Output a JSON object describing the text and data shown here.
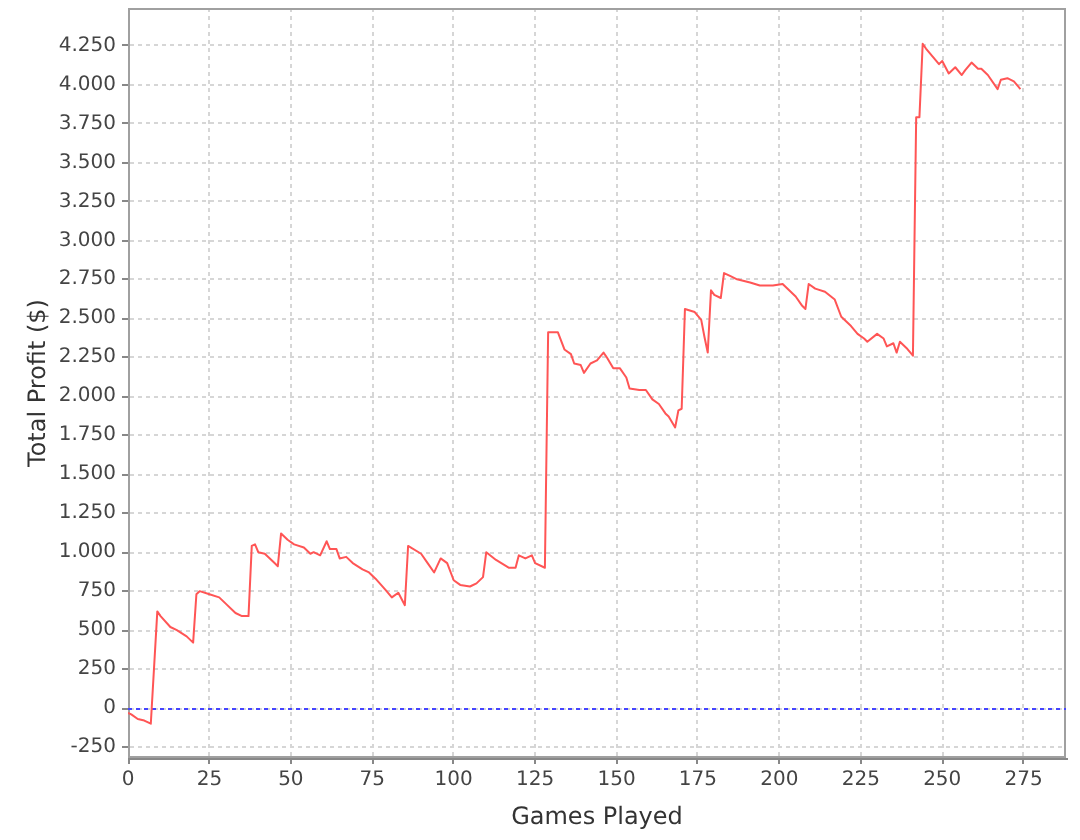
{
  "chart_data": {
    "type": "line",
    "xlabel": "Games Played",
    "ylabel": "Total Profit ($)",
    "x": [
      0,
      1,
      3,
      5,
      7,
      9,
      10,
      13,
      15,
      18,
      20,
      21,
      22,
      25,
      28,
      30,
      33,
      35,
      37,
      38,
      39,
      40,
      42,
      45,
      46,
      47,
      49,
      51,
      54,
      56,
      57,
      59,
      61,
      62,
      64,
      65,
      67,
      69,
      72,
      74,
      76,
      79,
      81,
      83,
      85,
      86,
      90,
      92,
      94,
      96,
      98,
      100,
      102,
      105,
      107,
      109,
      110,
      113,
      117,
      119,
      120,
      122,
      124,
      125,
      128,
      129,
      132,
      134,
      136,
      137,
      139,
      140,
      142,
      144,
      146,
      147,
      149,
      151,
      153,
      154,
      157,
      159,
      161,
      163,
      165,
      166,
      168,
      169,
      170,
      171,
      174,
      176,
      177,
      178,
      179,
      180,
      182,
      183,
      185,
      187,
      191,
      194,
      198,
      201,
      203,
      205,
      207,
      208,
      209,
      211,
      214,
      217,
      219,
      222,
      224,
      226,
      227,
      230,
      232,
      233,
      235,
      236,
      237,
      239,
      241,
      242,
      243,
      244,
      245,
      247,
      249,
      250,
      251,
      252,
      254,
      256,
      257,
      259,
      261,
      262,
      264,
      267,
      268,
      270,
      272,
      274
    ],
    "values": [
      -30,
      -40,
      -70,
      -80,
      -100,
      620,
      590,
      520,
      500,
      460,
      420,
      730,
      750,
      730,
      710,
      670,
      610,
      590,
      590,
      1040,
      1050,
      1000,
      990,
      930,
      910,
      1120,
      1080,
      1050,
      1030,
      990,
      1000,
      980,
      1070,
      1020,
      1020,
      960,
      970,
      930,
      890,
      870,
      830,
      760,
      710,
      740,
      660,
      1040,
      990,
      930,
      870,
      960,
      930,
      820,
      790,
      780,
      800,
      840,
      1000,
      950,
      900,
      900,
      980,
      960,
      980,
      930,
      900,
      2410,
      2410,
      2300,
      2270,
      2210,
      2200,
      2150,
      2210,
      2230,
      2280,
      2250,
      2180,
      2180,
      2120,
      2050,
      2040,
      2040,
      1980,
      1950,
      1890,
      1870,
      1800,
      1910,
      1920,
      2560,
      2540,
      2490,
      2380,
      2280,
      2680,
      2650,
      2630,
      2790,
      2770,
      2750,
      2730,
      2710,
      2710,
      2720,
      2680,
      2640,
      2580,
      2560,
      2720,
      2690,
      2670,
      2620,
      2510,
      2450,
      2400,
      2370,
      2350,
      2400,
      2370,
      2320,
      2340,
      2280,
      2350,
      2310,
      2260,
      3790,
      3790,
      4260,
      4230,
      4180,
      4130,
      4150,
      4110,
      4070,
      4110,
      4060,
      4090,
      4140,
      4100,
      4100,
      4060,
      3970,
      4030,
      4040,
      4020,
      3970
    ],
    "color": "#ff5555",
    "xlim": [
      0,
      288
    ],
    "ylim": [
      -320,
      4490
    ],
    "xticks": [
      0,
      25,
      50,
      75,
      100,
      125,
      150,
      175,
      200,
      225,
      250,
      275
    ],
    "yticks": [
      -250,
      0,
      250,
      500,
      750,
      {
        "value": 1000,
        "label": "1.000"
      },
      {
        "value": 1250,
        "label": "1.250"
      },
      {
        "value": 1500,
        "label": "1.500"
      },
      {
        "value": 1750,
        "label": "1.750"
      },
      {
        "value": 2000,
        "label": "2.000"
      },
      {
        "value": 2250,
        "label": "2.250"
      },
      {
        "value": 2500,
        "label": "2.500"
      },
      {
        "value": 2750,
        "label": "2.750"
      },
      {
        "value": 3000,
        "label": "3.000"
      },
      {
        "value": 3250,
        "label": "3.250"
      },
      {
        "value": 3500,
        "label": "3.500"
      },
      {
        "value": 3750,
        "label": "3.750"
      },
      {
        "value": 4000,
        "label": "4.000"
      },
      {
        "value": 4250,
        "label": "4.250"
      }
    ],
    "grid": true,
    "legend": false,
    "ref_lines": [
      {
        "axis": "y",
        "value": 0,
        "color": "#4444ff",
        "line_style": "dashed"
      }
    ]
  }
}
